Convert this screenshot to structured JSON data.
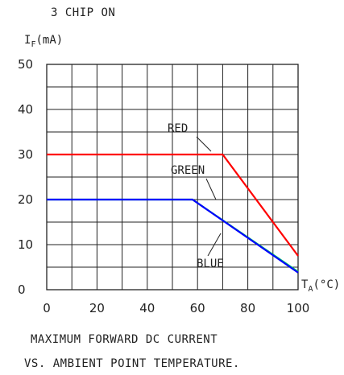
{
  "header": {
    "condition": "3 CHIP ON"
  },
  "chart_data": {
    "type": "line",
    "title": "3 CHIP ON",
    "ylabel_main": "I",
    "ylabel_sub": "F",
    "ylabel_unit": "(mA)",
    "xlabel_main": "T",
    "xlabel_sub": "A",
    "xlabel_unit": "(°C)",
    "xlim": [
      0,
      100
    ],
    "ylim": [
      0,
      50
    ],
    "x_ticks": [
      0,
      20,
      40,
      60,
      80,
      100
    ],
    "y_ticks": [
      0,
      10,
      20,
      30,
      40,
      50
    ],
    "grid": true,
    "series": [
      {
        "name": "RED",
        "color": "#ff0000",
        "x": [
          0,
          70,
          100
        ],
        "y": [
          30,
          30,
          7.5
        ]
      },
      {
        "name": "GREEN",
        "color": "#00cc66",
        "x": [
          0,
          58,
          100
        ],
        "y": [
          20,
          20,
          4
        ]
      },
      {
        "name": "BLUE",
        "color": "#0000ff",
        "x": [
          0,
          58,
          100
        ],
        "y": [
          20,
          20,
          3.8
        ]
      }
    ]
  },
  "caption": {
    "line1": "MAXIMUM FORWARD DC CURRENT",
    "line2": "VS. AMBIENT POINT TEMPERATURE."
  }
}
